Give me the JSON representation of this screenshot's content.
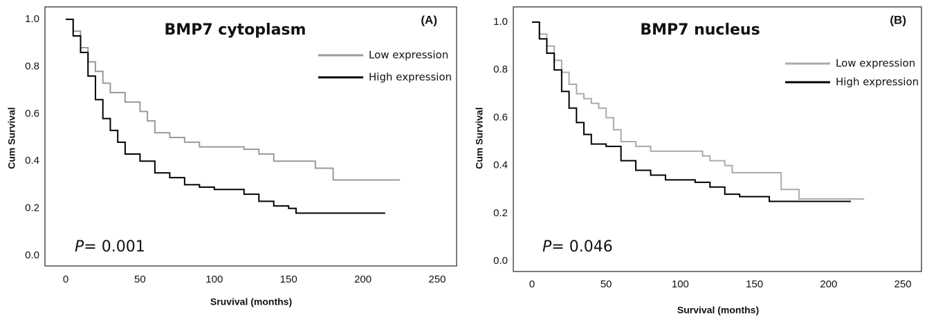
{
  "chart_data": [
    {
      "type": "step",
      "title": "BMP7 cytoplasm",
      "panel": "(A)",
      "x_label": "Sruvival (months)",
      "y_label": "Cum Survival",
      "p_symbol": "P",
      "p_text": "= 0.001",
      "xlim": [
        0,
        250
      ],
      "xticks": [
        0,
        50,
        100,
        150,
        200,
        250
      ],
      "ylim": [
        0,
        1
      ],
      "yticks": [
        {
          "value": 0,
          "label": "0.0"
        },
        0.2,
        0.4,
        0.6,
        0.8,
        {
          "value": 1,
          "label": "1.0"
        }
      ],
      "series": [
        {
          "name": "Low expression",
          "color": "#999999",
          "x": [
            0,
            5,
            10,
            15,
            20,
            25,
            30,
            40,
            50,
            55,
            60,
            70,
            80,
            90,
            120,
            130,
            140,
            168,
            180,
            225
          ],
          "values": [
            1,
            0.95,
            0.88,
            0.82,
            0.78,
            0.73,
            0.69,
            0.65,
            0.61,
            0.57,
            0.52,
            0.5,
            0.48,
            0.46,
            0.45,
            0.43,
            0.4,
            0.37,
            0.32,
            0.32
          ]
        },
        {
          "name": "High expression",
          "color": "#000000",
          "x": [
            0,
            5,
            10,
            15,
            20,
            25,
            30,
            35,
            40,
            50,
            60,
            70,
            80,
            90,
            100,
            120,
            130,
            140,
            150,
            155,
            215
          ],
          "values": [
            1,
            0.93,
            0.86,
            0.76,
            0.66,
            0.58,
            0.53,
            0.48,
            0.43,
            0.4,
            0.35,
            0.33,
            0.3,
            0.29,
            0.28,
            0.26,
            0.23,
            0.21,
            0.2,
            0.18,
            0.18
          ]
        }
      ]
    },
    {
      "type": "step",
      "title": "BMP7 nucleus",
      "panel": "(B)",
      "x_label": "Survival (months)",
      "y_label": "Cum Survival",
      "p_symbol": "P",
      "p_text": "= 0.046",
      "xlim": [
        0,
        250
      ],
      "xticks": [
        0,
        50,
        100,
        150,
        200,
        250
      ],
      "ylim": [
        0,
        1
      ],
      "yticks": [
        {
          "value": 0,
          "label": "0.0"
        },
        0.2,
        0.4,
        0.6,
        0.8,
        {
          "value": 1,
          "label": "1.0"
        }
      ],
      "series": [
        {
          "name": "Low expression",
          "color": "#aaaaaa",
          "x": [
            0,
            5,
            10,
            15,
            20,
            25,
            30,
            35,
            40,
            45,
            50,
            55,
            60,
            70,
            80,
            115,
            120,
            130,
            135,
            168,
            180,
            224
          ],
          "values": [
            1,
            0.95,
            0.9,
            0.84,
            0.79,
            0.74,
            0.7,
            0.68,
            0.66,
            0.64,
            0.6,
            0.55,
            0.5,
            0.48,
            0.46,
            0.44,
            0.42,
            0.4,
            0.37,
            0.3,
            0.26,
            0.26
          ]
        },
        {
          "name": "High expression",
          "color": "#000000",
          "x": [
            0,
            5,
            10,
            15,
            20,
            25,
            30,
            35,
            40,
            50,
            60,
            70,
            80,
            90,
            110,
            120,
            130,
            140,
            160,
            215
          ],
          "values": [
            1,
            0.93,
            0.87,
            0.8,
            0.71,
            0.64,
            0.58,
            0.53,
            0.49,
            0.48,
            0.42,
            0.38,
            0.36,
            0.34,
            0.33,
            0.31,
            0.28,
            0.27,
            0.25,
            0.25
          ]
        }
      ]
    }
  ]
}
